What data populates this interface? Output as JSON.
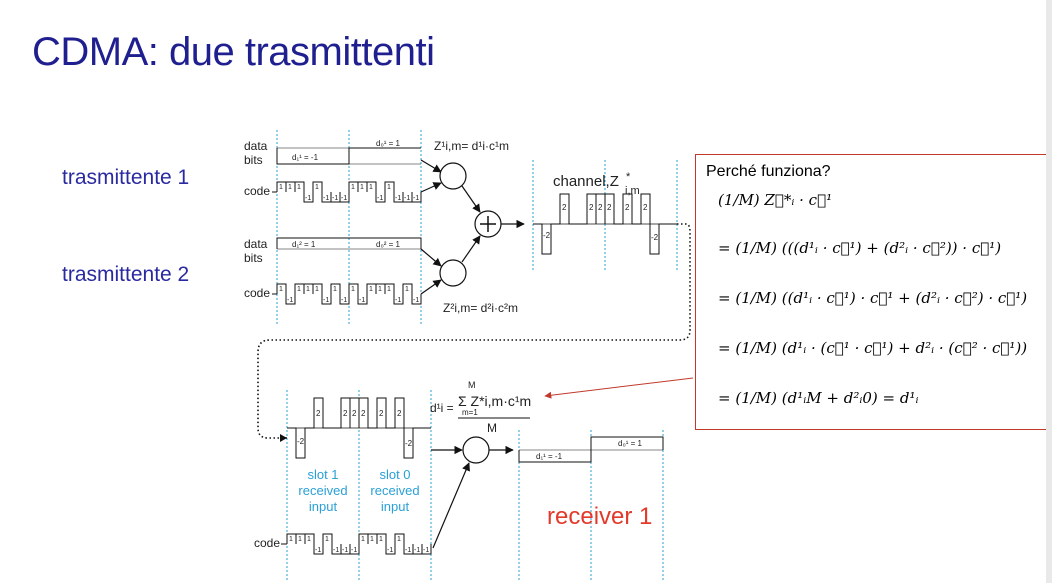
{
  "title": "CDMA: due trasmittenti",
  "senders": [
    {
      "label": "trasmittente 1"
    },
    {
      "label": "trasmittente 2"
    }
  ],
  "labels": {
    "data": "data",
    "bits": "bits",
    "code": "code",
    "channel": "channel,Z",
    "channel_sup": "*",
    "channel_sub": "i,m",
    "receiver": "receiver 1"
  },
  "bits": {
    "s1_d1": "d₁¹ = -1",
    "s1_d0": "d₀¹ = 1",
    "s2_d1": "d₁² = 1",
    "s2_d0": "d₀² = 1",
    "r_d1": "d₁¹ = -1",
    "r_d0": "d₀¹ = 1"
  },
  "formulas": {
    "z1": "Z¹i,m= d¹i·c¹m",
    "z2": "Z²i,m= d²i·c²m",
    "decode_lhs": "d¹i =",
    "decode_num": "Σ Z*i,m·c¹m",
    "decode_sum_top": "M",
    "decode_sum_bottom": "m=1",
    "decode_den": "M"
  },
  "code_values": {
    "one": "1",
    "minus_one": "-1"
  },
  "channel_values": [
    "-2",
    "2",
    "2",
    "2",
    "2",
    "2",
    "2",
    "-2"
  ],
  "received_values": [
    "-2",
    "2",
    "2",
    "2",
    "2",
    "2",
    "2",
    "-2"
  ],
  "slots": [
    {
      "line1": "slot 1",
      "line2": "received",
      "line3": "input"
    },
    {
      "line1": "slot 0",
      "line2": "received",
      "line3": "input"
    }
  ],
  "proof": {
    "title": "Perché funziona?",
    "lines": [
      "(1/M) Z⃗*ᵢ · c⃗¹",
      "= (1/M) (((d¹ᵢ · c⃗¹) + (d²ᵢ · c⃗²)) · c⃗¹)",
      "= (1/M) ((d¹ᵢ · c⃗¹) · c⃗¹ + (d²ᵢ · c⃗²) · c⃗¹)",
      "= (1/M) (d¹ᵢ · (c⃗¹ · c⃗¹) + d²ᵢ · (c⃗² · c⃗¹))",
      "= (1/M) (d¹ᵢM + d²ᵢ0) = d¹ᵢ"
    ]
  }
}
